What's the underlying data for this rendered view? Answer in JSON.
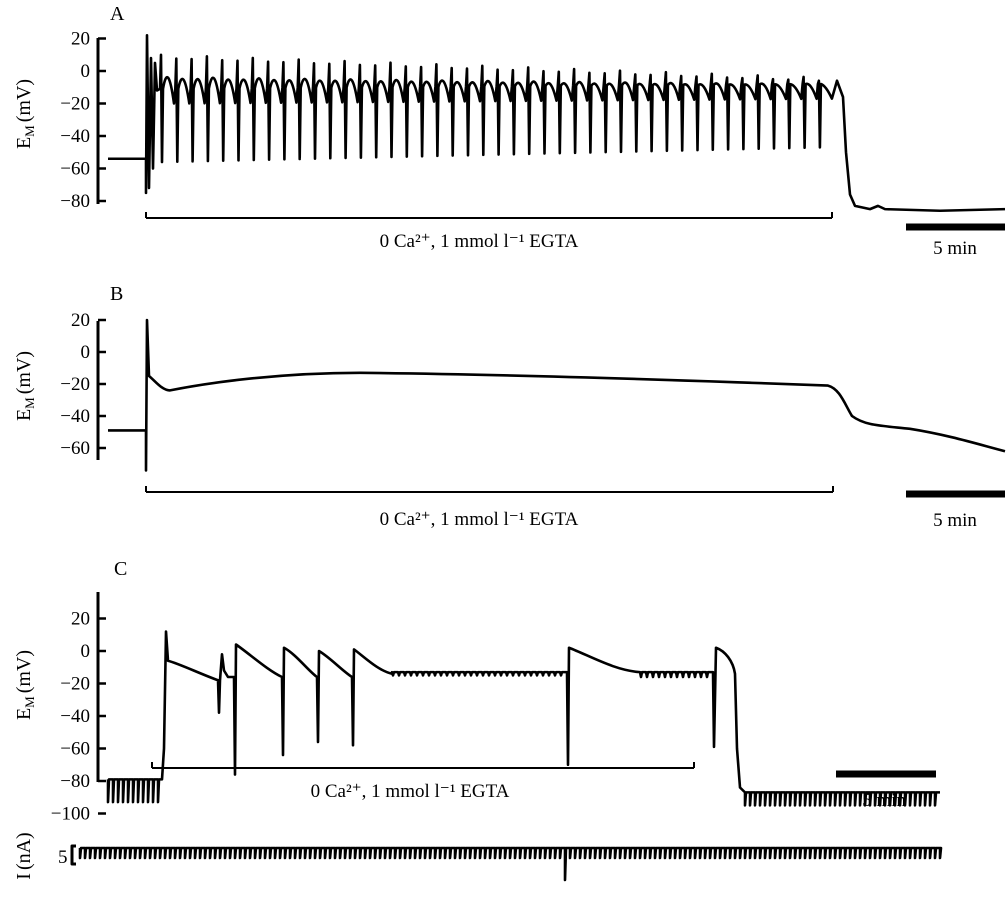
{
  "chart_data": [
    {
      "panel": "A",
      "type": "line",
      "ylabel_main": "E",
      "ylabel_sub": "M",
      "ylabel_unit": "(mV)",
      "yticks": [
        20,
        0,
        -20,
        -40,
        -60,
        -80
      ],
      "ylim": [
        -80,
        20
      ],
      "solution_label": "0 Ca²⁺, 1 mmol l⁻¹ EGTA",
      "scale_bar_label": "5 min",
      "resting_potential_before_mV": -54,
      "resting_potential_after_mV": -85,
      "spike_count": 44,
      "spike_peak_range_mV": [
        -8,
        8
      ],
      "spike_trough_range_mV": [
        -58,
        -47
      ]
    },
    {
      "panel": "B",
      "type": "line",
      "ylabel_main": "E",
      "ylabel_sub": "M",
      "ylabel_unit": "(mV)",
      "yticks": [
        20,
        0,
        -20,
        -40,
        -60
      ],
      "ylim": [
        -60,
        20
      ],
      "solution_label": "0 Ca²⁺, 1 mmol l⁻¹ EGTA",
      "scale_bar_label": "5 min",
      "resting_potential_before_mV": -49,
      "plateau_mV": -13,
      "end_value_mV": -62
    },
    {
      "panel": "C",
      "type": "line",
      "ylabel_main": "E",
      "ylabel_sub": "M",
      "ylabel_unit": "(mV)",
      "yticks": [
        20,
        0,
        -20,
        -40,
        -60,
        -80,
        -100
      ],
      "ylim": [
        -100,
        20
      ],
      "solution_label": "0 Ca²⁺, 1 mmol l⁻¹ EGTA",
      "scale_bar_label": "5 min",
      "resting_potential_before_mV": -79,
      "resting_potential_after_mV": -87,
      "plateau_mV": -13,
      "current_trace": {
        "ylabel_main": "I",
        "ylabel_unit": "(nA)",
        "scale_value": "5"
      }
    }
  ]
}
